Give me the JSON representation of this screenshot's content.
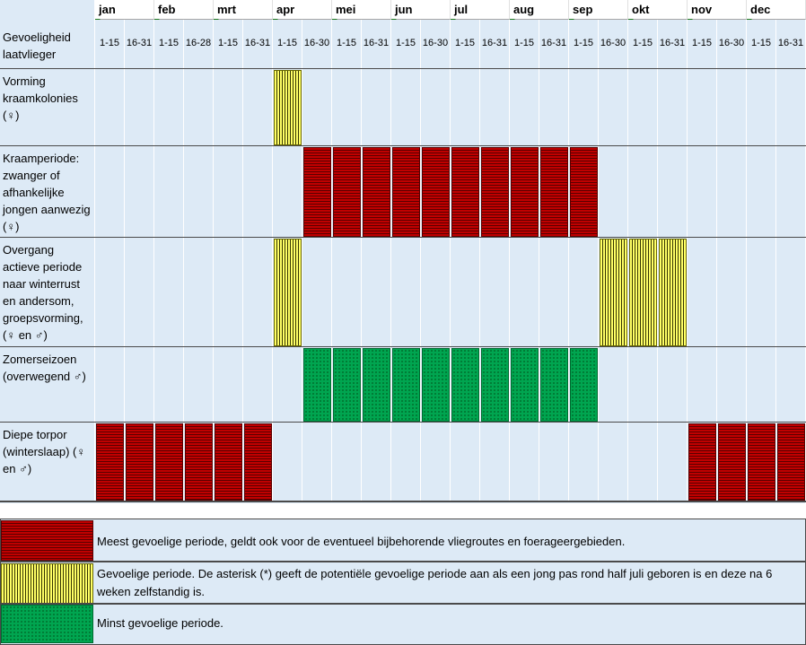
{
  "header": {
    "title": "Gevoeligheid laatvlieger",
    "months": [
      "jan",
      "feb",
      "mrt",
      "apr",
      "mei",
      "jun",
      "jul",
      "aug",
      "sep",
      "okt",
      "nov",
      "dec"
    ],
    "halves": [
      "1-15",
      "16-31",
      "1-15",
      "16-28",
      "1-15",
      "16-31",
      "1-15",
      "16-30",
      "1-15",
      "16-31",
      "1-15",
      "16-30",
      "1-15",
      "16-31",
      "1-15",
      "16-31",
      "1-15",
      "16-30",
      "1-15",
      "16-31",
      "1-15",
      "16-30",
      "1-15",
      "16-31"
    ]
  },
  "rows": [
    {
      "label": "Vorming kraamkolonies (♀)",
      "cells": [
        0,
        0,
        0,
        0,
        0,
        0,
        "yellow",
        0,
        0,
        0,
        0,
        0,
        0,
        0,
        0,
        0,
        0,
        0,
        0,
        0,
        0,
        0,
        0,
        0
      ]
    },
    {
      "label": "Kraamperiode: zwanger of afhankelijke jongen aanwezig (♀)",
      "cells": [
        0,
        0,
        0,
        0,
        0,
        0,
        0,
        "red",
        "red",
        "red",
        "red",
        "red",
        "red",
        "red",
        "red",
        "red",
        "red",
        0,
        0,
        0,
        0,
        0,
        0,
        0
      ]
    },
    {
      "label": "Overgang actieve periode naar winterrust en andersom, groepsvorming, (♀ en ♂)",
      "cells": [
        0,
        0,
        0,
        0,
        0,
        0,
        "yellow",
        0,
        0,
        0,
        0,
        0,
        0,
        0,
        0,
        0,
        0,
        "yellow",
        "yellow",
        "yellow",
        0,
        0,
        0,
        0
      ]
    },
    {
      "label": "Zomerseizoen (overwegend ♂)",
      "cells": [
        0,
        0,
        0,
        0,
        0,
        0,
        0,
        "green",
        "green",
        "green",
        "green",
        "green",
        "green",
        "green",
        "green",
        "green",
        "green",
        0,
        0,
        0,
        0,
        0,
        0,
        0
      ]
    },
    {
      "label": "Diepe torpor (winterslaap) (♀ en ♂)",
      "cells": [
        "red",
        "red",
        "red",
        "red",
        "red",
        "red",
        0,
        0,
        0,
        0,
        0,
        0,
        0,
        0,
        0,
        0,
        0,
        0,
        0,
        0,
        "red",
        "red",
        "red",
        "red"
      ]
    }
  ],
  "legend": [
    {
      "pattern": "red",
      "text": "Meest gevoelige periode, geldt ook voor de eventueel bijbehorende vliegroutes en foerageergebieden."
    },
    {
      "pattern": "yellow",
      "text": "Gevoelige periode. De asterisk (*) geeft de potentiële gevoelige periode aan als een jong pas rond half juli geboren is en deze na 6 weken zelfstandig is."
    },
    {
      "pattern": "green",
      "text": "Minst gevoelige periode."
    }
  ],
  "colors": {
    "cell_bg": "#ddeaf6",
    "red": "#c00000",
    "yellow": "#ffff66",
    "green": "#00a550"
  }
}
